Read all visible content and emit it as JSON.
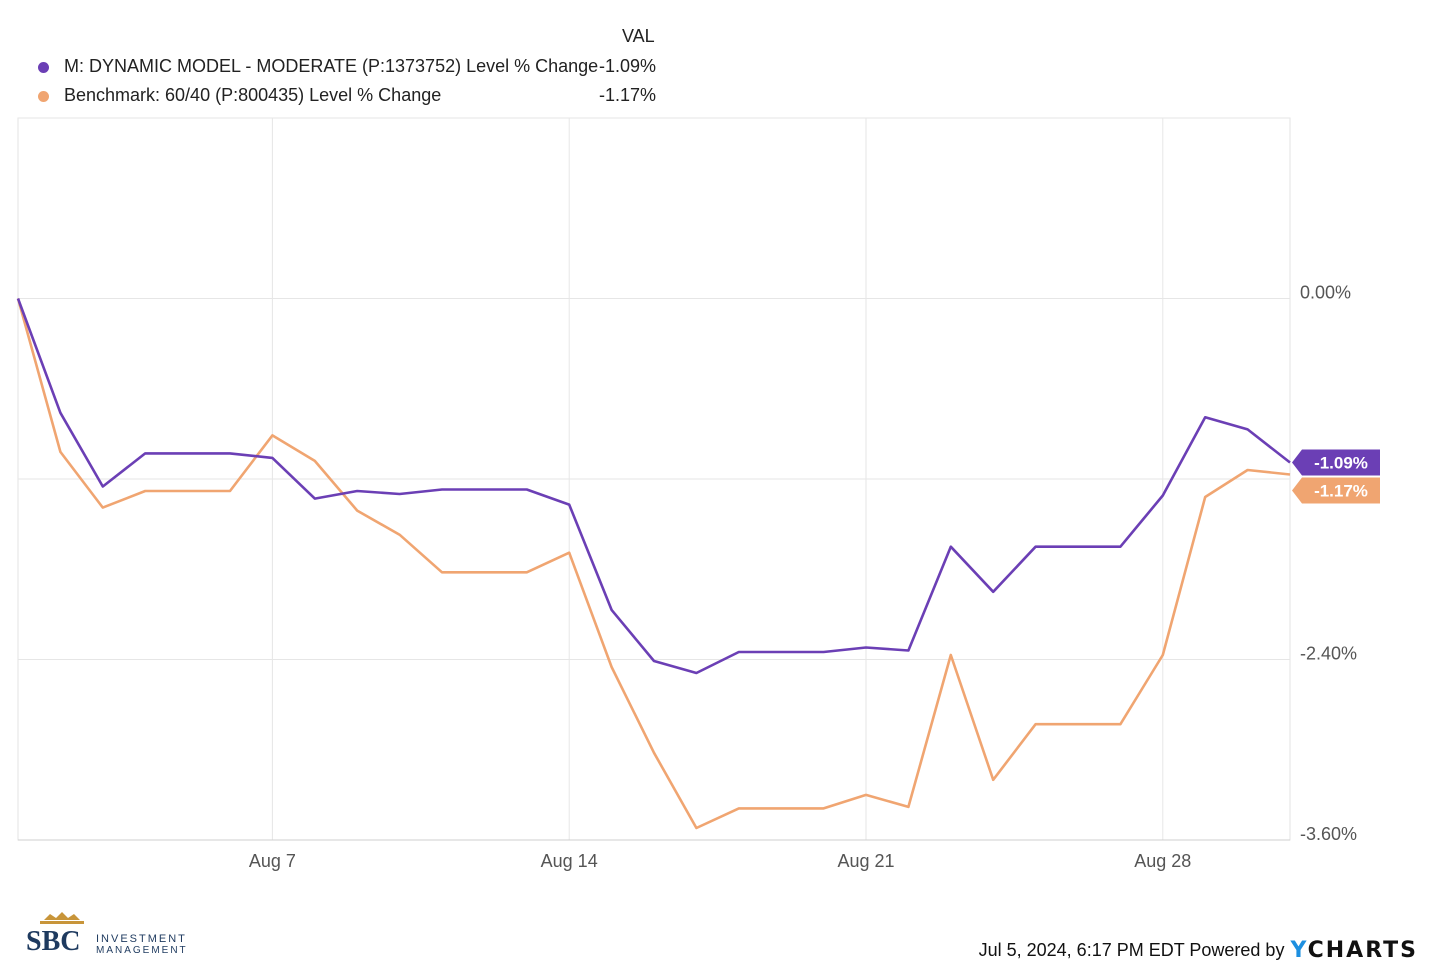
{
  "legend": {
    "header": "VAL",
    "items": [
      {
        "name": "M: DYNAMIC MODEL - MODERATE (P:1373752) Level % Change",
        "value": "-1.09%",
        "color": "#6b3fb5"
      },
      {
        "name": "Benchmark: 60/40 (P:800435) Level % Change",
        "value": "-1.17%",
        "color": "#f0a571"
      }
    ]
  },
  "chart_data": {
    "type": "line",
    "x_tick_labels": [
      "Aug 7",
      "Aug 14",
      "Aug 21",
      "Aug 28"
    ],
    "x_tick_index": [
      6,
      13,
      20,
      27
    ],
    "y_tick_labels": [
      "0.00%",
      "-2.40%",
      "-3.60%"
    ],
    "y_tick_values": [
      0.0,
      -2.4,
      -3.6
    ],
    "ylim": [
      -3.6,
      1.2
    ],
    "grid": true,
    "series": [
      {
        "name": "M: DYNAMIC MODEL - MODERATE (P:1373752) Level % Change",
        "color": "#6b3fb5",
        "end_label": "-1.09%",
        "values": [
          0.0,
          -0.76,
          -1.25,
          -1.03,
          -1.03,
          -1.03,
          -1.06,
          -1.33,
          -1.28,
          -1.3,
          -1.27,
          -1.27,
          -1.27,
          -1.37,
          -2.07,
          -2.41,
          -2.49,
          -2.35,
          -2.35,
          -2.35,
          -2.32,
          -2.34,
          -1.65,
          -1.95,
          -1.65,
          -1.65,
          -1.65,
          -1.31,
          -0.79,
          -0.87,
          -1.09
        ]
      },
      {
        "name": "Benchmark: 60/40 (P:800435) Level % Change",
        "color": "#f0a571",
        "end_label": "-1.17%",
        "values": [
          0.0,
          -1.02,
          -1.39,
          -1.28,
          -1.28,
          -1.28,
          -0.91,
          -1.08,
          -1.41,
          -1.57,
          -1.82,
          -1.82,
          -1.82,
          -1.69,
          -2.45,
          -3.02,
          -3.52,
          -3.39,
          -3.39,
          -3.39,
          -3.3,
          -3.38,
          -2.37,
          -3.2,
          -2.83,
          -2.83,
          -2.83,
          -2.37,
          -1.32,
          -1.14,
          -1.17
        ]
      }
    ]
  },
  "footer": {
    "timestamp": "Jul 5, 2024, 6:17 PM EDT Powered by",
    "brand_y": "Y",
    "brand_rest": "CHARTS",
    "logo_letters": "SBC",
    "logo_line1": "INVESTMENT",
    "logo_line2": "MANAGEMENT"
  }
}
